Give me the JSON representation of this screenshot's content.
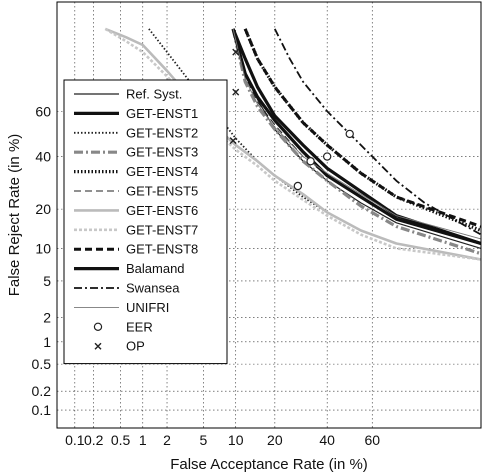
{
  "chart_data": {
    "type": "line",
    "scale": "normal-deviate (DET) on both axes",
    "xlabel": "False Acceptance Rate (in %)",
    "ylabel": "False Reject Rate (in %)",
    "x_ticks": [
      "0.1",
      "0.2",
      "0.5",
      "1",
      "2",
      "5",
      "10",
      "20",
      "40",
      "60"
    ],
    "y_ticks": [
      "0.1",
      "0.2",
      "0.5",
      "1",
      "2",
      "5",
      "10",
      "20",
      "40",
      "60"
    ],
    "xlim": [
      0.05,
      93
    ],
    "ylim": [
      0.05,
      93
    ],
    "grid": true,
    "legend_position": "left",
    "series": [
      {
        "name": "Ref. Syst.",
        "style": "solid-thin",
        "color": "#222222",
        "x": [
          9.5,
          12,
          15,
          20,
          30,
          40,
          55,
          70,
          93
        ],
        "y": [
          88,
          75,
          65,
          52,
          38,
          30,
          22,
          16,
          10
        ]
      },
      {
        "name": "GET-ENST1",
        "style": "solid-thick",
        "color": "#111111",
        "x": [
          9.5,
          12,
          15,
          20,
          30,
          40,
          55,
          70,
          93
        ],
        "y": [
          88,
          80,
          70,
          58,
          45,
          35,
          26,
          18,
          11
        ]
      },
      {
        "name": "GET-ENST2",
        "style": "dotted",
        "color": "#222222",
        "x": [
          1.2,
          2,
          4,
          7,
          10,
          15,
          20,
          30,
          40,
          55,
          70,
          93
        ],
        "y": [
          88,
          82,
          70,
          58,
          48,
          38,
          32,
          24,
          19,
          14,
          11,
          8
        ]
      },
      {
        "name": "GET-ENST3",
        "style": "dashdot-gray",
        "color": "#888888",
        "x": [
          9.5,
          12,
          15,
          20,
          30,
          40,
          55,
          70,
          93
        ],
        "y": [
          88,
          72,
          62,
          52,
          38,
          30,
          21,
          15,
          9
        ]
      },
      {
        "name": "GET-ENST4",
        "style": "dotted-thick",
        "color": "#111111",
        "x": [
          12,
          15,
          20,
          30,
          40,
          55,
          70,
          93
        ],
        "y": [
          88,
          80,
          70,
          55,
          45,
          33,
          24,
          14
        ]
      },
      {
        "name": "GET-ENST5",
        "style": "dashed-thin",
        "color": "#222222",
        "x": [
          9.5,
          12,
          15,
          20,
          30,
          40,
          55,
          70,
          93
        ],
        "y": [
          88,
          74,
          64,
          54,
          40,
          32,
          24,
          17,
          11
        ]
      },
      {
        "name": "GET-ENST6",
        "style": "solid-lightgray",
        "color": "#bbbbbb",
        "x": [
          0.3,
          0.6,
          1,
          2,
          4,
          7,
          10,
          15,
          20,
          30,
          40,
          55,
          70,
          93
        ],
        "y": [
          88,
          86,
          84,
          76,
          64,
          52,
          45,
          38,
          32,
          25,
          19,
          14,
          11,
          8
        ]
      },
      {
        "name": "GET-ENST7",
        "style": "dashed-lightgray",
        "color": "#c8c8c8",
        "x": [
          0.3,
          0.6,
          1,
          2,
          4,
          7,
          10,
          15,
          20,
          30,
          40,
          55,
          70,
          93
        ],
        "y": [
          88,
          85,
          82,
          74,
          62,
          50,
          43,
          36,
          30,
          23,
          18,
          13,
          10,
          8
        ]
      },
      {
        "name": "GET-ENST8",
        "style": "dashed-thick",
        "color": "#111111",
        "x": [
          12,
          15,
          20,
          30,
          40,
          55,
          70,
          93
        ],
        "y": [
          88,
          80,
          70,
          55,
          45,
          33,
          24,
          15
        ]
      },
      {
        "name": "Balamand",
        "style": "solid-thick",
        "color": "#111111",
        "x": [
          9.5,
          12,
          15,
          20,
          30,
          40,
          55,
          70,
          93
        ],
        "y": [
          88,
          75,
          66,
          56,
          42,
          32,
          24,
          17,
          11
        ]
      },
      {
        "name": "Swansea",
        "style": "dashdot",
        "color": "#111111",
        "x": [
          20,
          25,
          30,
          40,
          50,
          60,
          70,
          80,
          93
        ],
        "y": [
          88,
          80,
          72,
          60,
          50,
          40,
          30,
          22,
          13
        ]
      },
      {
        "name": "UNIFRI",
        "style": "solid-hairline",
        "color": "#777777",
        "x": [
          9.5,
          12,
          15,
          20,
          30,
          40,
          55,
          70,
          93
        ],
        "y": [
          88,
          73,
          63,
          53,
          40,
          33,
          25,
          18,
          12
        ]
      },
      {
        "name": "EER",
        "style": "marker-circle",
        "color": "#222222",
        "x": [
          28,
          33,
          40,
          50
        ],
        "y": [
          28,
          38,
          40,
          50
        ]
      },
      {
        "name": "OP",
        "style": "marker-x",
        "color": "#222222",
        "x": [
          9.5,
          10,
          10
        ],
        "y": [
          47,
          68,
          82
        ]
      }
    ]
  }
}
